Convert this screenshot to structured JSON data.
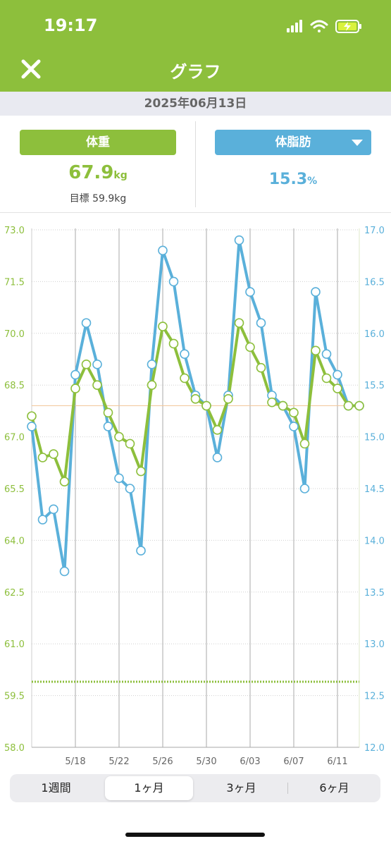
{
  "status_bar": {
    "time": "19:17"
  },
  "nav": {
    "title": "グラフ",
    "close_icon": "close-icon"
  },
  "date": "2025年06月13日",
  "summary": {
    "weight": {
      "label": "体重",
      "value": "67.9",
      "unit": "kg",
      "goal": "目標 59.9kg"
    },
    "body_fat": {
      "label": "体脂肪",
      "value": "15.3",
      "unit": "%"
    }
  },
  "colors": {
    "weight": "#8dbf3c",
    "body_fat": "#5ab0da",
    "header": "#8dbf3c"
  },
  "chart_data": {
    "type": "line",
    "x_ticks": [
      "5/18",
      "5/22",
      "5/26",
      "5/30",
      "6/03",
      "6/07",
      "6/11"
    ],
    "y_left": {
      "ticks": [
        "73.0",
        "71.5",
        "70.0",
        "68.5",
        "67.0",
        "65.5",
        "64.0",
        "62.5",
        "61.0",
        "59.5",
        "58.0"
      ],
      "ylim": [
        58.0,
        73.0
      ]
    },
    "y_right": {
      "ticks": [
        "17.0",
        "16.5",
        "16.0",
        "15.5",
        "15.0",
        "14.5",
        "14.0",
        "13.5",
        "13.0",
        "12.5",
        "12.0"
      ],
      "ylim": [
        12.0,
        17.0
      ]
    },
    "x_domain": [
      "2025-05-14",
      "2025-06-13"
    ],
    "goal_weight": 59.9,
    "current_weight": 67.9,
    "series": [
      {
        "name": "体重",
        "axis": "left",
        "x": [
          "5/14",
          "5/15",
          "5/16",
          "5/17",
          "5/18",
          "5/19",
          "5/20",
          "5/21",
          "5/22",
          "5/23",
          "5/24",
          "5/25",
          "5/26",
          "5/27",
          "5/28",
          "5/29",
          "5/30",
          "5/31",
          "6/01",
          "6/02",
          "6/03",
          "6/04",
          "6/05",
          "6/06",
          "6/07",
          "6/08",
          "6/09",
          "6/10",
          "6/11",
          "6/12",
          "6/13"
        ],
        "values": [
          67.6,
          66.4,
          66.5,
          65.7,
          68.4,
          69.1,
          68.5,
          67.7,
          67.0,
          66.8,
          66.0,
          68.5,
          70.2,
          69.7,
          68.7,
          68.1,
          67.9,
          67.2,
          68.1,
          70.3,
          69.6,
          69.0,
          68.0,
          67.9,
          67.7,
          66.8,
          69.5,
          68.7,
          68.4,
          67.9,
          67.9
        ]
      },
      {
        "name": "体脂肪",
        "axis": "right",
        "x": [
          "5/14",
          "5/15",
          "5/16",
          "5/17",
          "5/18",
          "5/19",
          "5/20",
          "5/21",
          "5/22",
          "5/23",
          "5/24",
          "5/25",
          "5/26",
          "5/27",
          "5/28",
          "5/29",
          "5/30",
          "5/31",
          "6/01",
          "6/02",
          "6/03",
          "6/04",
          "6/05",
          "6/06",
          "6/07",
          "6/08",
          "6/09",
          "6/10",
          "6/11",
          "6/12",
          "6/13"
        ],
        "values": [
          15.1,
          14.2,
          14.3,
          13.7,
          15.6,
          16.1,
          15.7,
          15.1,
          14.6,
          14.5,
          13.9,
          15.7,
          16.8,
          16.5,
          15.8,
          15.4,
          15.3,
          14.8,
          15.4,
          16.9,
          16.4,
          16.1,
          15.4,
          15.3,
          15.1,
          14.5,
          16.4,
          15.8,
          15.6,
          15.3,
          15.3
        ]
      }
    ]
  },
  "period_tabs": {
    "items": [
      "1週間",
      "1ヶ月",
      "3ヶ月",
      "6ヶ月"
    ],
    "selected": "1ヶ月"
  }
}
